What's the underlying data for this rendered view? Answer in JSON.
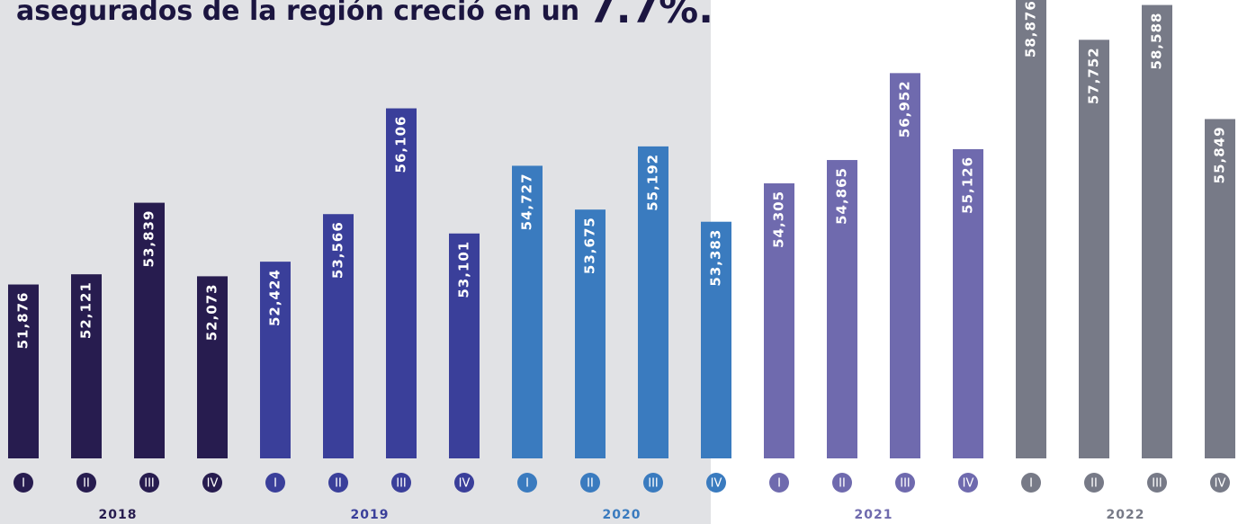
{
  "chart_data": {
    "type": "bar",
    "title": "asegurados de la región creció en un",
    "highlight": "7.7%.",
    "categories": [
      "I",
      "II",
      "III",
      "IV"
    ],
    "ylim": [
      47700,
      58600
    ],
    "series": [
      {
        "name": "2018",
        "color": "#271c4f",
        "values": [
          51876,
          52121,
          53839,
          52073
        ],
        "value_labels": [
          "51,876",
          "52,121",
          "53,839",
          "52,073"
        ]
      },
      {
        "name": "2019",
        "color": "#3a3f9a",
        "values": [
          52424,
          53566,
          56106,
          53101
        ],
        "value_labels": [
          "52,424",
          "53,566",
          "56,106",
          "53,101"
        ]
      },
      {
        "name": "2020",
        "color": "#3a7bbf",
        "values": [
          54727,
          53675,
          55192,
          53383
        ],
        "value_labels": [
          "54,727",
          "53,675",
          "55,192",
          "53,383"
        ]
      },
      {
        "name": "2021",
        "color": "#6f6aae",
        "values": [
          54305,
          54865,
          56952,
          55126
        ],
        "value_labels": [
          "54,305",
          "54,865",
          "56,952",
          "55,126"
        ]
      },
      {
        "name": "2022",
        "color": "#777a87",
        "values": [
          58876,
          57752,
          58588,
          55849
        ],
        "value_labels": [
          "58,876",
          "57,752",
          "58,588",
          "55,849"
        ]
      }
    ]
  }
}
